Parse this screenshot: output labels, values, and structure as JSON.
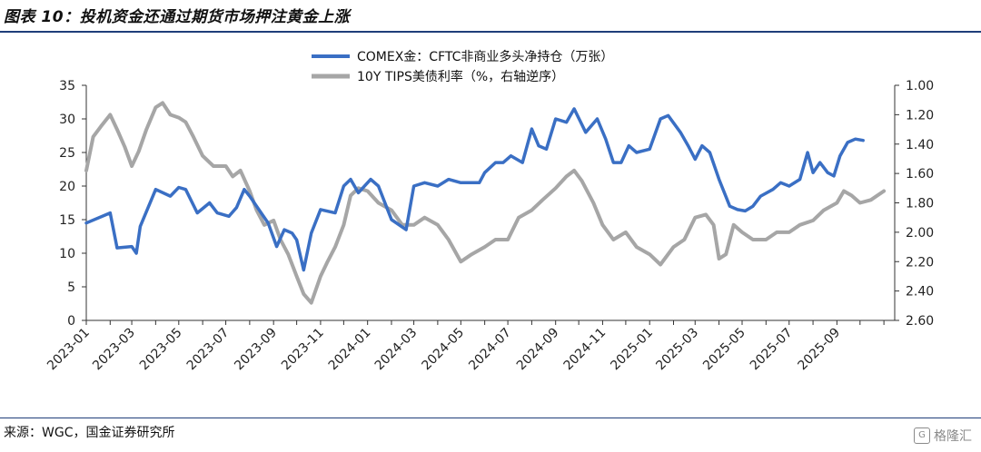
{
  "page": {
    "title": "图表 10：投机资金还通过期货市场押注黄金上涨",
    "source": "来源：WGC，国金证券研究所",
    "watermark": "格隆汇"
  },
  "chart_data": {
    "type": "line",
    "x_tick_labels": [
      "2023-01",
      "2023-03",
      "2023-05",
      "2023-07",
      "2023-09",
      "2023-11",
      "2024-01",
      "2024-03",
      "2024-05",
      "2024-07",
      "2024-09",
      "2024-11",
      "2025-01",
      "2025-03",
      "2025-05",
      "2025-07",
      "2025-09"
    ],
    "xlim": [
      "2023-01-01",
      "2025-11-15"
    ],
    "y_left": {
      "range": [
        0,
        35
      ],
      "ticks": [
        0,
        5,
        10,
        15,
        20,
        25,
        30,
        35
      ]
    },
    "y_right": {
      "range": [
        1.0,
        2.6
      ],
      "inverted": true,
      "ticks": [
        "1.00",
        "1.20",
        "1.40",
        "1.60",
        "1.80",
        "2.00",
        "2.20",
        "2.40",
        "2.60"
      ]
    },
    "legend_position": "top-center",
    "series": [
      {
        "name": "COMEX金：CFTC非商业多头净持仓（万张）",
        "axis": "left",
        "color": "#3a6fc4",
        "points": [
          [
            "2023-01-01",
            14.5
          ],
          [
            "2023-02-01",
            16.0
          ],
          [
            "2023-02-10",
            10.8
          ],
          [
            "2023-03-01",
            11.0
          ],
          [
            "2023-03-07",
            10.0
          ],
          [
            "2023-03-12",
            14.0
          ],
          [
            "2023-04-01",
            19.5
          ],
          [
            "2023-04-20",
            18.5
          ],
          [
            "2023-05-01",
            19.8
          ],
          [
            "2023-05-10",
            19.5
          ],
          [
            "2023-05-25",
            16.0
          ],
          [
            "2023-06-10",
            17.5
          ],
          [
            "2023-06-20",
            16.0
          ],
          [
            "2023-07-05",
            15.5
          ],
          [
            "2023-07-15",
            16.8
          ],
          [
            "2023-07-25",
            19.5
          ],
          [
            "2023-08-01",
            18.5
          ],
          [
            "2023-08-10",
            17.0
          ],
          [
            "2023-08-25",
            14.5
          ],
          [
            "2023-09-05",
            11.0
          ],
          [
            "2023-09-15",
            13.5
          ],
          [
            "2023-09-25",
            13.0
          ],
          [
            "2023-10-01",
            12.0
          ],
          [
            "2023-10-10",
            7.5
          ],
          [
            "2023-10-20",
            13.0
          ],
          [
            "2023-11-01",
            16.5
          ],
          [
            "2023-11-20",
            16.0
          ],
          [
            "2023-12-01",
            20.0
          ],
          [
            "2023-12-10",
            21.0
          ],
          [
            "2023-12-20",
            19.0
          ],
          [
            "2024-01-05",
            21.0
          ],
          [
            "2024-01-15",
            20.0
          ],
          [
            "2024-02-01",
            15.0
          ],
          [
            "2024-02-20",
            13.5
          ],
          [
            "2024-03-01",
            20.0
          ],
          [
            "2024-03-15",
            20.5
          ],
          [
            "2024-04-01",
            20.0
          ],
          [
            "2024-04-15",
            21.0
          ],
          [
            "2024-05-01",
            20.5
          ],
          [
            "2024-05-15",
            20.5
          ],
          [
            "2024-05-25",
            20.5
          ],
          [
            "2024-06-01",
            22.0
          ],
          [
            "2024-06-15",
            23.5
          ],
          [
            "2024-06-25",
            23.5
          ],
          [
            "2024-07-05",
            24.5
          ],
          [
            "2024-07-20",
            23.5
          ],
          [
            "2024-08-01",
            28.5
          ],
          [
            "2024-08-10",
            26.0
          ],
          [
            "2024-08-20",
            25.5
          ],
          [
            "2024-09-01",
            30.0
          ],
          [
            "2024-09-15",
            29.5
          ],
          [
            "2024-09-25",
            31.5
          ],
          [
            "2024-10-10",
            28.0
          ],
          [
            "2024-10-25",
            30.0
          ],
          [
            "2024-11-05",
            27.0
          ],
          [
            "2024-11-15",
            23.5
          ],
          [
            "2024-11-25",
            23.5
          ],
          [
            "2024-12-05",
            26.0
          ],
          [
            "2024-12-15",
            25.0
          ],
          [
            "2025-01-01",
            25.5
          ],
          [
            "2025-01-15",
            30.0
          ],
          [
            "2025-01-25",
            30.5
          ],
          [
            "2025-02-10",
            28.0
          ],
          [
            "2025-02-20",
            26.0
          ],
          [
            "2025-03-01",
            24.0
          ],
          [
            "2025-03-10",
            26.0
          ],
          [
            "2025-03-20",
            25.0
          ],
          [
            "2025-04-01",
            21.0
          ],
          [
            "2025-04-15",
            17.0
          ],
          [
            "2025-04-25",
            16.5
          ],
          [
            "2025-05-05",
            16.3
          ],
          [
            "2025-05-15",
            17.0
          ],
          [
            "2025-05-25",
            18.5
          ],
          [
            "2025-06-10",
            19.5
          ],
          [
            "2025-06-20",
            20.5
          ],
          [
            "2025-07-01",
            20.0
          ],
          [
            "2025-07-15",
            21.0
          ],
          [
            "2025-07-25",
            25.0
          ],
          [
            "2025-08-01",
            22.0
          ],
          [
            "2025-08-10",
            23.5
          ],
          [
            "2025-08-20",
            22.0
          ],
          [
            "2025-08-28",
            21.5
          ],
          [
            "2025-09-05",
            24.5
          ],
          [
            "2025-09-15",
            26.5
          ],
          [
            "2025-09-25",
            27.0
          ],
          [
            "2025-10-05",
            26.8
          ]
        ]
      },
      {
        "name": "10Y TIPS美债利率（%，右轴逆序）",
        "axis": "right",
        "color": "#a6a6a6",
        "points": [
          [
            "2023-01-01",
            1.58
          ],
          [
            "2023-01-10",
            1.35
          ],
          [
            "2023-01-20",
            1.28
          ],
          [
            "2023-02-01",
            1.2
          ],
          [
            "2023-02-10",
            1.3
          ],
          [
            "2023-02-20",
            1.42
          ],
          [
            "2023-03-01",
            1.55
          ],
          [
            "2023-03-10",
            1.45
          ],
          [
            "2023-03-20",
            1.3
          ],
          [
            "2023-04-01",
            1.15
          ],
          [
            "2023-04-10",
            1.12
          ],
          [
            "2023-04-20",
            1.2
          ],
          [
            "2023-05-01",
            1.22
          ],
          [
            "2023-05-10",
            1.25
          ],
          [
            "2023-05-20",
            1.35
          ],
          [
            "2023-06-01",
            1.48
          ],
          [
            "2023-06-15",
            1.55
          ],
          [
            "2023-07-01",
            1.55
          ],
          [
            "2023-07-10",
            1.62
          ],
          [
            "2023-07-20",
            1.58
          ],
          [
            "2023-08-01",
            1.72
          ],
          [
            "2023-08-10",
            1.85
          ],
          [
            "2023-08-20",
            1.95
          ],
          [
            "2023-09-01",
            1.92
          ],
          [
            "2023-09-10",
            2.05
          ],
          [
            "2023-09-20",
            2.15
          ],
          [
            "2023-10-01",
            2.3
          ],
          [
            "2023-10-10",
            2.42
          ],
          [
            "2023-10-20",
            2.48
          ],
          [
            "2023-11-01",
            2.3
          ],
          [
            "2023-11-10",
            2.2
          ],
          [
            "2023-11-20",
            2.1
          ],
          [
            "2023-12-01",
            1.95
          ],
          [
            "2023-12-10",
            1.75
          ],
          [
            "2023-12-20",
            1.7
          ],
          [
            "2024-01-01",
            1.72
          ],
          [
            "2024-01-15",
            1.8
          ],
          [
            "2024-02-01",
            1.85
          ],
          [
            "2024-02-15",
            1.95
          ],
          [
            "2024-03-01",
            1.95
          ],
          [
            "2024-03-15",
            1.9
          ],
          [
            "2024-04-01",
            1.95
          ],
          [
            "2024-04-15",
            2.05
          ],
          [
            "2024-05-01",
            2.2
          ],
          [
            "2024-05-15",
            2.15
          ],
          [
            "2024-06-01",
            2.1
          ],
          [
            "2024-06-15",
            2.05
          ],
          [
            "2024-07-01",
            2.05
          ],
          [
            "2024-07-15",
            1.9
          ],
          [
            "2024-08-01",
            1.85
          ],
          [
            "2024-08-15",
            1.78
          ],
          [
            "2024-09-01",
            1.7
          ],
          [
            "2024-09-15",
            1.62
          ],
          [
            "2024-09-25",
            1.58
          ],
          [
            "2024-10-05",
            1.65
          ],
          [
            "2024-10-20",
            1.8
          ],
          [
            "2024-11-01",
            1.95
          ],
          [
            "2024-11-15",
            2.05
          ],
          [
            "2024-12-01",
            2.0
          ],
          [
            "2024-12-15",
            2.1
          ],
          [
            "2025-01-01",
            2.15
          ],
          [
            "2025-01-15",
            2.22
          ],
          [
            "2025-02-01",
            2.1
          ],
          [
            "2025-02-15",
            2.05
          ],
          [
            "2025-03-01",
            1.9
          ],
          [
            "2025-03-15",
            1.88
          ],
          [
            "2025-03-25",
            1.95
          ],
          [
            "2025-04-01",
            2.18
          ],
          [
            "2025-04-10",
            2.15
          ],
          [
            "2025-04-20",
            1.95
          ],
          [
            "2025-05-01",
            2.0
          ],
          [
            "2025-05-15",
            2.05
          ],
          [
            "2025-06-01",
            2.05
          ],
          [
            "2025-06-15",
            2.0
          ],
          [
            "2025-07-01",
            2.0
          ],
          [
            "2025-07-15",
            1.95
          ],
          [
            "2025-08-01",
            1.92
          ],
          [
            "2025-08-15",
            1.85
          ],
          [
            "2025-09-01",
            1.8
          ],
          [
            "2025-09-10",
            1.72
          ],
          [
            "2025-09-20",
            1.75
          ],
          [
            "2025-10-01",
            1.8
          ],
          [
            "2025-10-15",
            1.78
          ],
          [
            "2025-11-01",
            1.72
          ]
        ]
      }
    ]
  }
}
